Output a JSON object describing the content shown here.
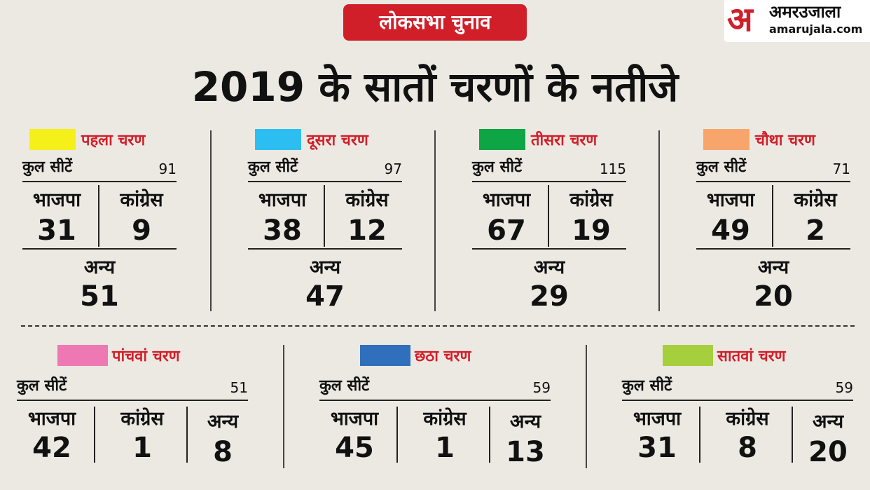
{
  "tag": "लोकसभा चुनाव",
  "logo": {
    "name": "अमरउजाला",
    "url": "amarujala.com",
    "mark": "अ"
  },
  "title": "2019 के सातों चरणों के नतीजे",
  "labels": {
    "seats": "कुल सीटें",
    "bjp": "भाजपा",
    "congress": "कांग्रेस",
    "others": "अन्य"
  },
  "phases": [
    {
      "name": "पहला चरण",
      "color": "#f5ef1a",
      "total": "91",
      "bjp": "31",
      "congress": "9",
      "others": "51"
    },
    {
      "name": "दूसरा चरण",
      "color": "#2cbef0",
      "total": "97",
      "bjp": "38",
      "congress": "12",
      "others": "47"
    },
    {
      "name": "तीसरा चरण",
      "color": "#0ea544",
      "total": "115",
      "bjp": "67",
      "congress": "19",
      "others": "29"
    },
    {
      "name": "चौथा चरण",
      "color": "#f8a56b",
      "total": "71",
      "bjp": "49",
      "congress": "2",
      "others": "20"
    },
    {
      "name": "पांचवां चरण",
      "color": "#ee78b4",
      "total": "51",
      "bjp": "42",
      "congress": "1",
      "others": "8"
    },
    {
      "name": "छठा चरण",
      "color": "#2f6fbc",
      "total": "59",
      "bjp": "45",
      "congress": "1",
      "others": "13"
    },
    {
      "name": "सातवां चरण",
      "color": "#a6cf3d",
      "total": "59",
      "bjp": "31",
      "congress": "8",
      "others": "20"
    }
  ]
}
